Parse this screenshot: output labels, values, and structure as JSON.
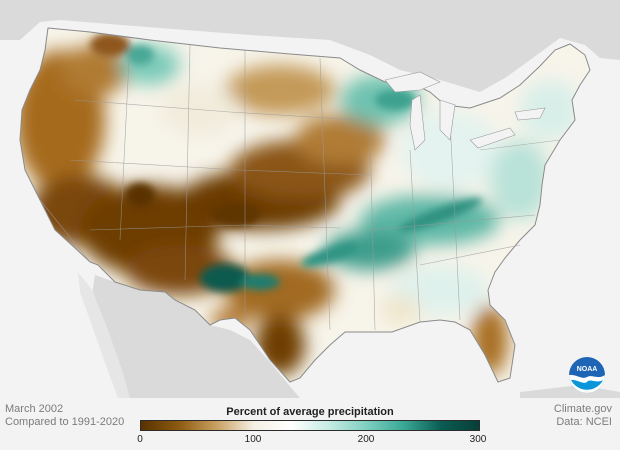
{
  "map": {
    "region": "Contiguous United States",
    "variable": "Percent of average precipitation"
  },
  "footer": {
    "date_label": "March 2002",
    "comparison_label": "Compared to 1991-2020",
    "source_label": "Climate.gov",
    "data_label": "Data: NCEI"
  },
  "legend": {
    "title": "Percent of average precipitation",
    "ticks": [
      "0",
      "100",
      "200",
      "300"
    ],
    "min": 0,
    "max": 300,
    "colors": [
      "#5a3200",
      "#8c5a10",
      "#c8a060",
      "#f5f0e4",
      "#ffffff",
      "#c6ebe4",
      "#7fcfc0",
      "#3aa896",
      "#0a5c52",
      "#063f38"
    ]
  },
  "logo": {
    "text": "NOAA",
    "icon": "noaa-logo-icon"
  },
  "colors": {
    "very_dry": "#5e3500",
    "dry": "#a36a1c",
    "slightly_dry": "#d9b47a",
    "average": "#f8f6f0",
    "wet": "#8fd4c6",
    "very_wet": "#0b5d53"
  }
}
